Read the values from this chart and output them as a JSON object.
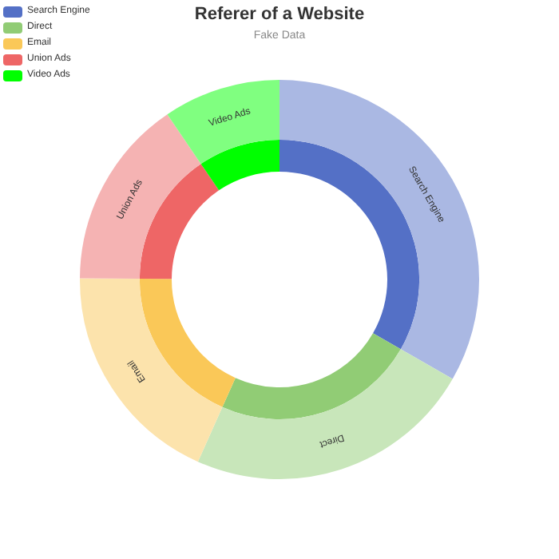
{
  "chart_data": {
    "type": "donut",
    "title": "Referer of a Website",
    "subtitle": "Fake Data",
    "categories": [
      "Search Engine",
      "Direct",
      "Email",
      "Union Ads",
      "Video Ads"
    ],
    "series": [
      {
        "colors": [
          "#aab8e3",
          "#c8e6ba",
          "#fce3ac",
          "#f5b3b3",
          "#80ff80"
        ],
        "values": [
          33.3,
          23.4,
          18.4,
          15.4,
          9.5
        ]
      },
      {
        "colors": [
          "#5470c6",
          "#91cc75",
          "#fac858",
          "#ee6666",
          "#00ff00"
        ],
        "values": [
          33.3,
          23.4,
          18.4,
          15.4,
          9.5
        ]
      }
    ],
    "legend": "top left"
  }
}
